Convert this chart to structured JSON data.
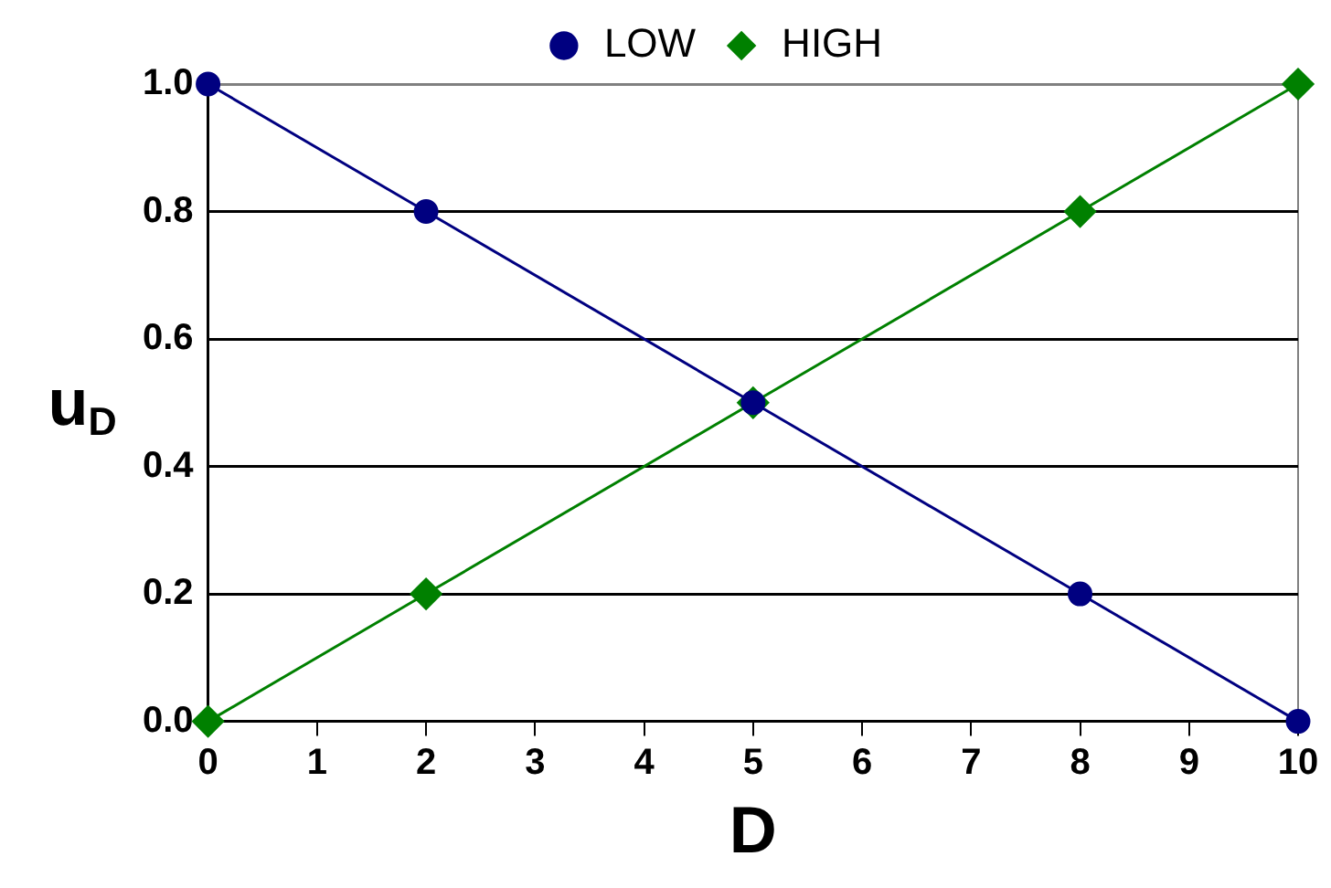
{
  "chart_data": {
    "type": "line",
    "xlabel": "D",
    "ylabel": "u$_{D}$",
    "xlim": [
      0,
      10
    ],
    "xticks": [
      0,
      1,
      2,
      3,
      4,
      5,
      6,
      7,
      8,
      9,
      10
    ],
    "ylim": [
      0,
      1
    ],
    "yticks": [
      {
        "value": 0,
        "label": "0.0"
      },
      {
        "value": 0.2,
        "label": "0.2"
      },
      {
        "value": 0.4,
        "label": "0.4"
      },
      {
        "value": 0.6,
        "label": "0.6"
      },
      {
        "value": 0.8,
        "label": "0.8"
      },
      {
        "value": 1,
        "label": "1.0"
      }
    ],
    "grid": "y",
    "legend": "top",
    "series": [
      {
        "name": "LOW",
        "color": "#000080",
        "marker": "circle",
        "x": [
          0,
          2,
          5,
          8,
          10
        ],
        "values": [
          1,
          0.8,
          0.5,
          0.2,
          0
        ]
      },
      {
        "name": "HIGH",
        "color": "#008000",
        "marker": "diamond",
        "x": [
          0,
          2,
          5,
          8,
          10
        ],
        "values": [
          0,
          0.2,
          0.5,
          0.8,
          1
        ]
      }
    ]
  }
}
